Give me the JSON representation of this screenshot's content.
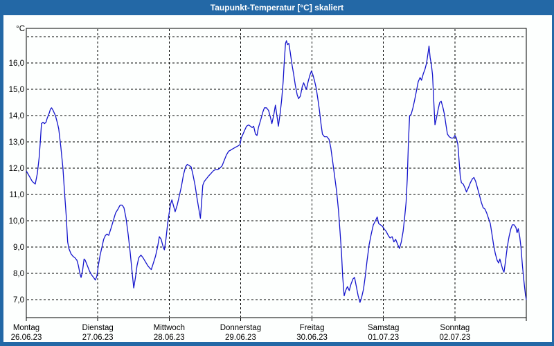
{
  "window": {
    "title": "Taupunkt-Temperatur [°C] skaliert"
  },
  "colors": {
    "frame_blue": "#2368a6",
    "title_text": "#ffffff",
    "plot_background": "#ffffff",
    "grid_black": "#000000",
    "line_blue": "#1414cc",
    "label_text": "#000000"
  },
  "chart_data": {
    "type": "line",
    "title": "Taupunkt-Temperatur [°C] skaliert",
    "y_unit_label": "°C",
    "ylim": [
      6.32,
      17.32
    ],
    "xlim_hours": [
      0,
      168
    ],
    "grid": "dashed",
    "legend": "none",
    "y_grid_values": [
      7,
      8,
      9,
      10,
      11,
      12,
      13,
      14,
      15,
      16,
      17
    ],
    "y_ticks": [
      {
        "value": 16,
        "label": "16,0"
      },
      {
        "value": 15,
        "label": "15,0"
      },
      {
        "value": 14,
        "label": "14,0"
      },
      {
        "value": 13,
        "label": "13,0"
      },
      {
        "value": 12,
        "label": "12,0"
      },
      {
        "value": 11,
        "label": "11,0"
      },
      {
        "value": 10,
        "label": "10,0"
      },
      {
        "value": 9,
        "label": "9,0"
      },
      {
        "value": 8,
        "label": "8,0"
      },
      {
        "value": 7,
        "label": "7,0"
      }
    ],
    "x_day_ticks": [
      {
        "hour": 0,
        "day": "Montag",
        "date": "26.06.23"
      },
      {
        "hour": 24,
        "day": "Dienstag",
        "date": "27.06.23"
      },
      {
        "hour": 48,
        "day": "Mittwoch",
        "date": "28.06.23"
      },
      {
        "hour": 72,
        "day": "Donnerstag",
        "date": "29.06.23"
      },
      {
        "hour": 96,
        "day": "Freitag",
        "date": "30.06.23"
      },
      {
        "hour": 120,
        "day": "Samstag",
        "date": "01.07.23"
      },
      {
        "hour": 144,
        "day": "Sonntag",
        "date": "02.07.23"
      }
    ],
    "series": [
      {
        "name": "Taupunkt-Temperatur",
        "color": "#1414cc",
        "points": [
          [
            0,
            11.9
          ],
          [
            1,
            11.7
          ],
          [
            2,
            11.5
          ],
          [
            3,
            11.4
          ],
          [
            3.7,
            11.8
          ],
          [
            4.3,
            12.4
          ],
          [
            4.7,
            13.0
          ],
          [
            5.1,
            13.7
          ],
          [
            5.6,
            13.75
          ],
          [
            6.1,
            13.7
          ],
          [
            6.6,
            13.75
          ],
          [
            7,
            13.9
          ],
          [
            7.7,
            14.1
          ],
          [
            8.1,
            14.25
          ],
          [
            8.5,
            14.3
          ],
          [
            9,
            14.2
          ],
          [
            9.8,
            14.0
          ],
          [
            10.5,
            13.7
          ],
          [
            10.9,
            13.5
          ],
          [
            11.6,
            12.8
          ],
          [
            12.3,
            12.0
          ],
          [
            12.9,
            11.0
          ],
          [
            13.4,
            10.2
          ],
          [
            13.9,
            9.2
          ],
          [
            14.3,
            8.95
          ],
          [
            15,
            8.75
          ],
          [
            15.7,
            8.65
          ],
          [
            16.3,
            8.6
          ],
          [
            17,
            8.5
          ],
          [
            17.5,
            8.3
          ],
          [
            18,
            8.0
          ],
          [
            18.4,
            7.85
          ],
          [
            18.9,
            8.1
          ],
          [
            19.4,
            8.55
          ],
          [
            19.8,
            8.5
          ],
          [
            20.5,
            8.3
          ],
          [
            21.2,
            8.1
          ],
          [
            21.9,
            7.95
          ],
          [
            22.6,
            7.85
          ],
          [
            23.2,
            7.75
          ],
          [
            23.7,
            7.9
          ],
          [
            24.2,
            8.3
          ],
          [
            24.8,
            8.7
          ],
          [
            25.4,
            9.0
          ],
          [
            26,
            9.3
          ],
          [
            26.6,
            9.45
          ],
          [
            27.1,
            9.5
          ],
          [
            27.7,
            9.45
          ],
          [
            28.4,
            9.7
          ],
          [
            29.2,
            10.0
          ],
          [
            30,
            10.3
          ],
          [
            30.8,
            10.45
          ],
          [
            31.5,
            10.6
          ],
          [
            32.2,
            10.6
          ],
          [
            32.8,
            10.5
          ],
          [
            33.5,
            10.1
          ],
          [
            34.2,
            9.5
          ],
          [
            34.9,
            8.8
          ],
          [
            35.5,
            8.1
          ],
          [
            36.1,
            7.45
          ],
          [
            36.6,
            7.8
          ],
          [
            37.2,
            8.3
          ],
          [
            37.8,
            8.6
          ],
          [
            38.5,
            8.7
          ],
          [
            39.2,
            8.6
          ],
          [
            40,
            8.45
          ],
          [
            40.8,
            8.3
          ],
          [
            41.5,
            8.2
          ],
          [
            42,
            8.15
          ],
          [
            42.7,
            8.4
          ],
          [
            43.4,
            8.65
          ],
          [
            44.1,
            9.0
          ],
          [
            44.7,
            9.4
          ],
          [
            45.3,
            9.3
          ],
          [
            46,
            9.0
          ],
          [
            46.4,
            8.9
          ],
          [
            46.9,
            9.3
          ],
          [
            47.5,
            9.9
          ],
          [
            48,
            10.3
          ],
          [
            48.5,
            10.65
          ],
          [
            48.9,
            10.8
          ],
          [
            49.4,
            10.6
          ],
          [
            50,
            10.35
          ],
          [
            50.7,
            10.6
          ],
          [
            51.4,
            10.95
          ],
          [
            52.1,
            11.3
          ],
          [
            52.8,
            11.75
          ],
          [
            53.5,
            12.05
          ],
          [
            54.1,
            12.15
          ],
          [
            54.8,
            12.1
          ],
          [
            55.4,
            12.05
          ],
          [
            56,
            11.75
          ],
          [
            56.7,
            11.35
          ],
          [
            57.3,
            10.9
          ],
          [
            57.9,
            10.5
          ],
          [
            58.5,
            10.1
          ],
          [
            58.9,
            10.7
          ],
          [
            59.3,
            11.35
          ],
          [
            59.8,
            11.5
          ],
          [
            60.5,
            11.6
          ],
          [
            61.2,
            11.7
          ],
          [
            62,
            11.8
          ],
          [
            62.8,
            11.9
          ],
          [
            63.5,
            11.95
          ],
          [
            64.3,
            11.95
          ],
          [
            65,
            12.0
          ],
          [
            65.8,
            12.1
          ],
          [
            66.5,
            12.3
          ],
          [
            67.2,
            12.5
          ],
          [
            68,
            12.65
          ],
          [
            68.8,
            12.7
          ],
          [
            69.5,
            12.75
          ],
          [
            70.3,
            12.8
          ],
          [
            71.1,
            12.85
          ],
          [
            71.8,
            12.9
          ],
          [
            72.2,
            13.15
          ],
          [
            72.8,
            13.3
          ],
          [
            73.4,
            13.45
          ],
          [
            74,
            13.6
          ],
          [
            74.7,
            13.65
          ],
          [
            75.3,
            13.6
          ],
          [
            75.9,
            13.55
          ],
          [
            76.4,
            13.6
          ],
          [
            77,
            13.3
          ],
          [
            77.5,
            13.25
          ],
          [
            78,
            13.55
          ],
          [
            78.9,
            13.9
          ],
          [
            79.5,
            14.15
          ],
          [
            80,
            14.3
          ],
          [
            80.7,
            14.3
          ],
          [
            81.4,
            14.2
          ],
          [
            82,
            13.95
          ],
          [
            82.5,
            13.7
          ],
          [
            83.1,
            14.0
          ],
          [
            83.7,
            14.4
          ],
          [
            84.2,
            14.0
          ],
          [
            84.7,
            13.6
          ],
          [
            85.3,
            14.1
          ],
          [
            85.8,
            14.6
          ],
          [
            86.3,
            15.3
          ],
          [
            86.7,
            16.1
          ],
          [
            87.1,
            16.75
          ],
          [
            87.4,
            16.85
          ],
          [
            87.8,
            16.7
          ],
          [
            88.2,
            16.75
          ],
          [
            88.7,
            16.4
          ],
          [
            89.2,
            16.0
          ],
          [
            89.8,
            15.6
          ],
          [
            90.4,
            15.15
          ],
          [
            91,
            14.8
          ],
          [
            91.5,
            14.65
          ],
          [
            92.1,
            14.75
          ],
          [
            92.7,
            15.1
          ],
          [
            93.2,
            15.25
          ],
          [
            93.7,
            15.1
          ],
          [
            94.1,
            15.0
          ],
          [
            94.7,
            15.3
          ],
          [
            95.3,
            15.55
          ],
          [
            95.8,
            15.7
          ],
          [
            96.3,
            15.55
          ],
          [
            96.8,
            15.35
          ],
          [
            97.4,
            15.05
          ],
          [
            98,
            14.6
          ],
          [
            98.5,
            14.2
          ],
          [
            99,
            13.7
          ],
          [
            99.5,
            13.3
          ],
          [
            100.2,
            13.2
          ],
          [
            101,
            13.2
          ],
          [
            101.7,
            13.1
          ],
          [
            102.3,
            12.8
          ],
          [
            103,
            12.2
          ],
          [
            103.6,
            11.7
          ],
          [
            104.3,
            11.1
          ],
          [
            104.9,
            10.4
          ],
          [
            105.4,
            9.6
          ],
          [
            105.9,
            8.8
          ],
          [
            106.3,
            7.9
          ],
          [
            106.8,
            7.15
          ],
          [
            107.3,
            7.35
          ],
          [
            107.9,
            7.5
          ],
          [
            108.5,
            7.35
          ],
          [
            109.1,
            7.6
          ],
          [
            109.8,
            7.8
          ],
          [
            110.3,
            7.85
          ],
          [
            110.9,
            7.5
          ],
          [
            111.5,
            7.15
          ],
          [
            112.1,
            6.9
          ],
          [
            112.7,
            7.1
          ],
          [
            113.3,
            7.4
          ],
          [
            113.9,
            7.9
          ],
          [
            114.5,
            8.5
          ],
          [
            115.2,
            9.1
          ],
          [
            115.9,
            9.5
          ],
          [
            116.6,
            9.85
          ],
          [
            117.3,
            10.0
          ],
          [
            117.9,
            10.15
          ],
          [
            118.4,
            9.9
          ],
          [
            119,
            9.85
          ],
          [
            119.6,
            9.8
          ],
          [
            120.2,
            9.7
          ],
          [
            120.9,
            9.6
          ],
          [
            121.6,
            9.45
          ],
          [
            122.2,
            9.35
          ],
          [
            122.9,
            9.4
          ],
          [
            123.5,
            9.2
          ],
          [
            124.1,
            9.3
          ],
          [
            124.8,
            9.1
          ],
          [
            125.4,
            8.95
          ],
          [
            126,
            9.2
          ],
          [
            126.6,
            9.6
          ],
          [
            127.1,
            10.1
          ],
          [
            127.6,
            10.7
          ],
          [
            128,
            11.6
          ],
          [
            128.4,
            13.0
          ],
          [
            128.8,
            14.0
          ],
          [
            129.3,
            14.05
          ],
          [
            129.9,
            14.3
          ],
          [
            130.5,
            14.6
          ],
          [
            131.1,
            14.95
          ],
          [
            131.7,
            15.3
          ],
          [
            132.3,
            15.45
          ],
          [
            132.8,
            15.35
          ],
          [
            133.4,
            15.6
          ],
          [
            133.9,
            15.75
          ],
          [
            134.5,
            16.0
          ],
          [
            135,
            16.4
          ],
          [
            135.3,
            16.65
          ],
          [
            135.7,
            16.2
          ],
          [
            136.1,
            15.95
          ],
          [
            136.5,
            15.55
          ],
          [
            136.9,
            14.6
          ],
          [
            137.3,
            13.65
          ],
          [
            137.8,
            13.9
          ],
          [
            138.3,
            14.2
          ],
          [
            138.9,
            14.5
          ],
          [
            139.4,
            14.55
          ],
          [
            140,
            14.3
          ],
          [
            140.5,
            14.05
          ],
          [
            141,
            13.65
          ],
          [
            141.5,
            13.3
          ],
          [
            142.1,
            13.2
          ],
          [
            142.8,
            13.15
          ],
          [
            143.5,
            13.15
          ],
          [
            144,
            13.25
          ],
          [
            144.5,
            13.15
          ],
          [
            145,
            12.9
          ],
          [
            145.4,
            12.3
          ],
          [
            145.8,
            11.7
          ],
          [
            146.2,
            11.45
          ],
          [
            146.8,
            11.4
          ],
          [
            147.4,
            11.25
          ],
          [
            147.9,
            11.1
          ],
          [
            148.5,
            11.25
          ],
          [
            149.2,
            11.45
          ],
          [
            149.9,
            11.6
          ],
          [
            150.4,
            11.65
          ],
          [
            151,
            11.5
          ],
          [
            151.6,
            11.25
          ],
          [
            152.2,
            11.0
          ],
          [
            152.9,
            10.7
          ],
          [
            153.5,
            10.5
          ],
          [
            154.1,
            10.45
          ],
          [
            154.7,
            10.3
          ],
          [
            155.3,
            10.1
          ],
          [
            155.9,
            9.9
          ],
          [
            156.4,
            9.55
          ],
          [
            157,
            9.1
          ],
          [
            157.6,
            8.75
          ],
          [
            158.2,
            8.5
          ],
          [
            158.7,
            8.4
          ],
          [
            159.1,
            8.55
          ],
          [
            159.6,
            8.35
          ],
          [
            160.1,
            8.15
          ],
          [
            160.5,
            8.05
          ],
          [
            161,
            8.45
          ],
          [
            161.6,
            9.0
          ],
          [
            162.2,
            9.4
          ],
          [
            162.8,
            9.7
          ],
          [
            163.3,
            9.85
          ],
          [
            163.9,
            9.85
          ],
          [
            164.5,
            9.75
          ],
          [
            164.9,
            9.55
          ],
          [
            165.3,
            9.7
          ],
          [
            165.8,
            9.4
          ],
          [
            166.2,
            9.0
          ],
          [
            166.7,
            8.3
          ],
          [
            167.2,
            7.7
          ],
          [
            167.7,
            7.2
          ],
          [
            168,
            7.0
          ]
        ]
      }
    ]
  }
}
